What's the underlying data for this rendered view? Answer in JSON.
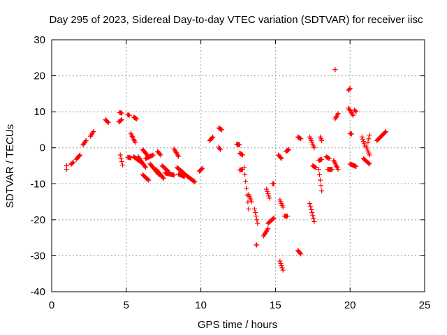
{
  "chart_data": {
    "type": "scatter",
    "title": "Day 295 of 2023, Sidereal Day-to-day VTEC variation (SDTVAR) for receiver iisc",
    "xlabel": "GPS time / hours",
    "ylabel": "SDTVAR / TECUs",
    "xlim": [
      0,
      25
    ],
    "ylim": [
      -40,
      30
    ],
    "xticks": [
      0,
      5,
      10,
      15,
      20,
      25
    ],
    "yticks": [
      -40,
      -30,
      -20,
      -10,
      0,
      10,
      20,
      30
    ],
    "grid": true,
    "marker": "+",
    "marker_color": "#ff0000",
    "series": [
      {
        "segments": [
          [
            1.0,
            -6.0,
            1.0,
            -5.0
          ],
          [
            1.3,
            -4.6,
            1.45,
            -4.0
          ],
          [
            1.65,
            -3.2,
            1.9,
            -2.0
          ],
          [
            2.1,
            0.8,
            2.3,
            2.0
          ],
          [
            2.6,
            3.2,
            2.8,
            4.5
          ],
          [
            3.6,
            7.8,
            3.8,
            7.0
          ],
          [
            4.5,
            7.2,
            4.7,
            7.8
          ],
          [
            4.55,
            9.8,
            4.7,
            9.6
          ],
          [
            4.6,
            -2.0,
            4.75,
            -4.8
          ],
          [
            5.1,
            9.2,
            5.2,
            9.0
          ],
          [
            5.1,
            -2.6,
            5.3,
            -2.8
          ],
          [
            5.3,
            4.0,
            5.6,
            1.5
          ],
          [
            5.5,
            8.5,
            5.7,
            8.0
          ],
          [
            5.5,
            -2.5,
            6.0,
            -4.0
          ],
          [
            5.8,
            -2.5,
            6.3,
            -5.5
          ],
          [
            6.1,
            -0.5,
            6.4,
            -2.0
          ],
          [
            6.1,
            -7.5,
            6.5,
            -9.0
          ],
          [
            6.3,
            -3.0,
            6.8,
            -2.0
          ],
          [
            6.6,
            -4.5,
            7.2,
            -7.5
          ],
          [
            7.0,
            -6.0,
            7.5,
            -8.5
          ],
          [
            7.1,
            -1.0,
            7.3,
            -2.0
          ],
          [
            7.4,
            -5.0,
            7.8,
            -6.5
          ],
          [
            7.6,
            -7.0,
            8.2,
            -7.6
          ],
          [
            8.2,
            -0.3,
            8.5,
            -2.4
          ],
          [
            8.4,
            -5.5,
            8.8,
            -6.8
          ],
          [
            8.5,
            -7.3,
            8.9,
            -8.0
          ],
          [
            8.8,
            -7.0,
            9.6,
            -9.5
          ],
          [
            9.9,
            -6.5,
            10.1,
            -5.7
          ],
          [
            10.6,
            2.0,
            10.8,
            3.0
          ],
          [
            11.2,
            5.5,
            11.4,
            5.0
          ],
          [
            11.2,
            0.2,
            11.3,
            -0.5
          ],
          [
            12.4,
            1.0,
            12.6,
            0.8
          ],
          [
            12.6,
            -1.5,
            12.8,
            -2.0
          ],
          [
            12.6,
            -6.2,
            12.8,
            -6.0
          ],
          [
            12.9,
            -5.5,
            13.2,
            -17.0
          ],
          [
            13.2,
            -13.0,
            13.4,
            -15.0
          ],
          [
            13.6,
            -17.0,
            13.8,
            -21.0
          ],
          [
            13.7,
            -27.0,
            13.75,
            -27.0
          ],
          [
            14.2,
            -24.5,
            14.5,
            -22.5
          ],
          [
            14.4,
            -11.5,
            14.6,
            -14.0
          ],
          [
            14.5,
            -21.0,
            14.9,
            -19.5
          ],
          [
            14.8,
            -10.0,
            14.9,
            -10.0
          ],
          [
            15.2,
            -2.0,
            15.4,
            -3.0
          ],
          [
            15.3,
            -14.5,
            15.5,
            -16.5
          ],
          [
            15.3,
            -31.5,
            15.5,
            -34.0
          ],
          [
            15.7,
            -1.0,
            15.9,
            -0.5
          ],
          [
            15.6,
            -19.0,
            15.8,
            -19.0
          ],
          [
            16.5,
            -28.5,
            16.7,
            -29.5
          ],
          [
            16.5,
            3.0,
            16.7,
            2.5
          ],
          [
            17.3,
            3.0,
            17.6,
            0.0
          ],
          [
            17.3,
            -15.5,
            17.6,
            -20.5
          ],
          [
            17.5,
            -5.0,
            17.7,
            -5.5
          ],
          [
            17.9,
            -3.5,
            18.1,
            -3.2
          ],
          [
            17.9,
            -6.0,
            18.1,
            -12.0
          ],
          [
            18.0,
            3.0,
            18.1,
            2.0
          ],
          [
            18.4,
            -2.5,
            18.6,
            -3.0
          ],
          [
            18.5,
            -6.0,
            18.8,
            -6.0
          ],
          [
            18.9,
            -3.5,
            19.2,
            -6.0
          ],
          [
            19.0,
            8.0,
            19.2,
            9.5
          ],
          [
            19.0,
            21.7,
            19.0,
            21.7
          ],
          [
            19.9,
            16.0,
            20.0,
            16.5
          ],
          [
            19.9,
            11.0,
            20.2,
            9.0
          ],
          [
            20.0,
            4.0,
            20.1,
            3.8
          ],
          [
            20.0,
            -4.5,
            20.4,
            -5.2
          ],
          [
            20.3,
            10.5,
            20.4,
            10.0
          ],
          [
            20.8,
            3.0,
            21.0,
            0.5
          ],
          [
            20.9,
            -3.0,
            21.3,
            -4.5
          ],
          [
            21.1,
            0.2,
            21.3,
            -2.0
          ],
          [
            21.2,
            1.5,
            21.3,
            3.5
          ],
          [
            21.8,
            2.0,
            22.4,
            4.5
          ]
        ]
      }
    ]
  }
}
